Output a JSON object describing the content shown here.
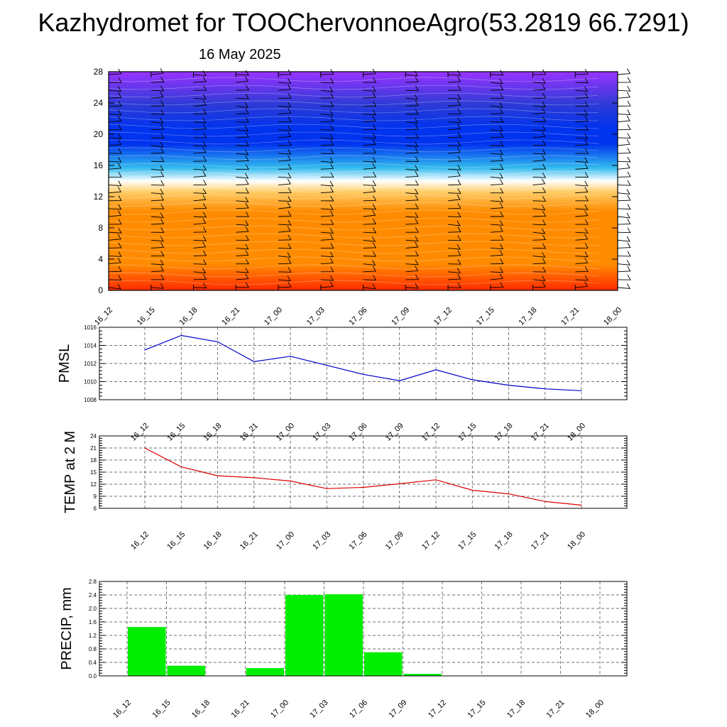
{
  "title": "Kazhydromet for TOOChervonnoeAgro(53.2819 66.7291)",
  "date": "16 May 2025",
  "chart_data": [
    {
      "type": "heatmap",
      "title": "",
      "xlabel": "",
      "ylabel": "",
      "categories": [
        "16_12",
        "16_15",
        "16_18",
        "16_21",
        "17_00",
        "17_03",
        "17_06",
        "17_09",
        "17_12",
        "17_15",
        "17_18",
        "17_21",
        "18_00"
      ],
      "yticks": [
        0,
        4,
        8,
        12,
        16,
        20,
        24,
        28
      ],
      "ylim": [
        0,
        28
      ],
      "colors": {
        "bottom": "#ff2a00",
        "low": "#ff8c00",
        "mid_warm": "#ffcc66",
        "transition": "#ffffff",
        "cool": "#33bbee",
        "mid": "#0033ee",
        "upper": "#2d3bd6",
        "top": "#9933ff"
      },
      "overlay": "wind barbs"
    },
    {
      "type": "line",
      "ylabel": "PMSL",
      "categories": [
        "16_12",
        "16_15",
        "16_18",
        "16_21",
        "17_00",
        "17_03",
        "17_06",
        "17_09",
        "17_12",
        "17_15",
        "17_18",
        "17_21",
        "18_00"
      ],
      "values": [
        1013.5,
        1015.1,
        1014.4,
        1012.2,
        1012.8,
        1011.8,
        1010.8,
        1010.1,
        1011.3,
        1010.2,
        1009.6,
        1009.2,
        1009.0
      ],
      "yticks": [
        1008,
        1010,
        1012,
        1014,
        1016
      ],
      "ylim": [
        1008,
        1016
      ],
      "color": "#0000cc",
      "grid": true
    },
    {
      "type": "line",
      "ylabel": "TEMP at 2 M",
      "categories": [
        "16_12",
        "16_15",
        "16_18",
        "16_21",
        "17_00",
        "17_03",
        "17_06",
        "17_09",
        "17_12",
        "17_15",
        "17_18",
        "17_21",
        "18_00"
      ],
      "values": [
        21.0,
        16.3,
        14.1,
        13.6,
        12.8,
        10.9,
        11.2,
        12.1,
        13.1,
        10.5,
        9.6,
        7.7,
        6.8
      ],
      "yticks": [
        6,
        9,
        12,
        15,
        18,
        21,
        24
      ],
      "ylim": [
        6,
        24
      ],
      "color": "#dd0000",
      "grid": true
    },
    {
      "type": "bar",
      "ylabel": "PRECIP, mm",
      "categories": [
        "16_12",
        "16_15",
        "16_18",
        "16_21",
        "17_00",
        "17_03",
        "17_06",
        "17_09",
        "17_12",
        "17_15",
        "17_18",
        "17_21",
        "18_00"
      ],
      "values": [
        0,
        1.45,
        0.3,
        0,
        0.23,
        2.4,
        2.42,
        0.7,
        0.06,
        0,
        0,
        0,
        0
      ],
      "yticks": [
        "0.0",
        "0.4",
        "0.8",
        "1.2",
        "1.6",
        "2.0",
        "2.4",
        "2.8"
      ],
      "ylim": [
        0,
        2.8
      ],
      "color": "#00ee00",
      "grid": true
    }
  ]
}
